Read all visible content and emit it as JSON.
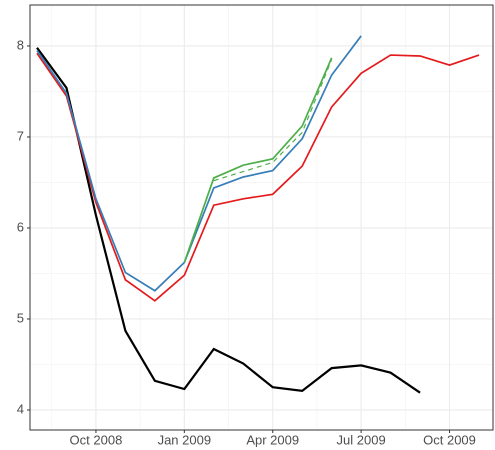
{
  "chart_data": {
    "type": "line",
    "x": [
      "2008-08",
      "2008-09",
      "2008-10",
      "2008-11",
      "2008-12",
      "2009-01",
      "2009-02",
      "2009-03",
      "2009-04",
      "2009-05",
      "2009-06",
      "2009-07",
      "2009-08",
      "2009-09",
      "2009-10",
      "2009-11"
    ],
    "series": [
      {
        "color": "#000000",
        "values": [
          7.98,
          7.54,
          6.14,
          4.87,
          4.32,
          4.23,
          4.67,
          4.51,
          4.25,
          4.21,
          4.46,
          4.49,
          4.41,
          4.19,
          null,
          null
        ]
      },
      {
        "color": "#e41a1c",
        "values": [
          7.92,
          7.45,
          6.28,
          5.43,
          5.2,
          5.48,
          6.25,
          6.32,
          6.37,
          6.68,
          7.33,
          7.7,
          7.9,
          7.89,
          7.79,
          7.9
        ]
      },
      {
        "color": "#377eb8",
        "values": [
          7.95,
          7.48,
          6.32,
          5.51,
          5.31,
          5.62,
          6.44,
          6.56,
          6.63,
          6.98,
          7.68,
          8.11,
          null,
          null,
          null,
          null
        ]
      },
      {
        "color": "#4daf4a",
        "values": [
          null,
          null,
          null,
          null,
          null,
          5.62,
          6.55,
          6.69,
          6.76,
          7.12,
          7.87,
          null,
          null,
          null,
          null,
          null
        ]
      },
      {
        "color": "#4daf4a",
        "dashed": true,
        "values": [
          null,
          null,
          null,
          null,
          null,
          null,
          6.52,
          6.62,
          6.72,
          7.05,
          7.85,
          null,
          null,
          null,
          null,
          null
        ]
      }
    ],
    "xlim": [
      "2008-08",
      "2009-11"
    ],
    "xticks": [
      {
        "value": "2008-10",
        "label": "Oct 2008"
      },
      {
        "value": "2009-01",
        "label": "Jan 2009"
      },
      {
        "value": "2009-04",
        "label": "Apr 2009"
      },
      {
        "value": "2009-07",
        "label": "Jul 2009"
      },
      {
        "value": "2009-10",
        "label": "Oct 2009"
      }
    ],
    "ylim": [
      3.78,
      8.45
    ],
    "yticks": [
      4,
      5,
      6,
      7,
      8
    ],
    "grid": true
  }
}
